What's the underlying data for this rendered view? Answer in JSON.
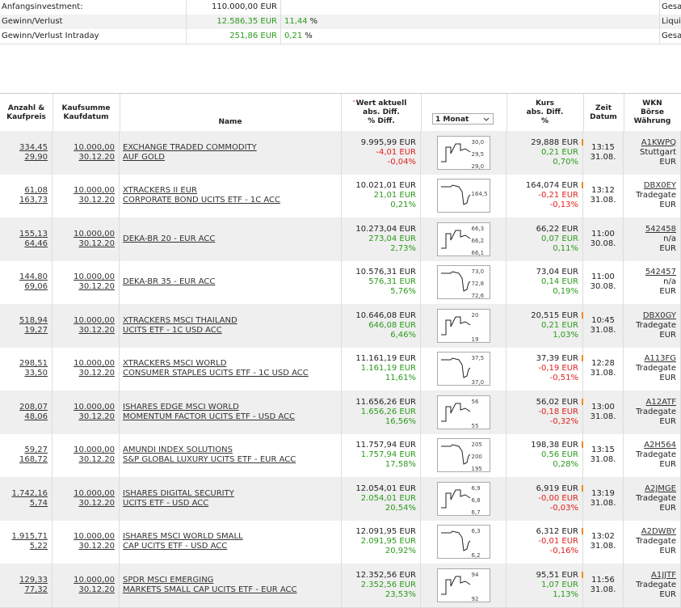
{
  "summary": [
    {
      "label": "Anfangsinvestment:",
      "value": "110.000,00 EUR",
      "pct": null,
      "unit": null,
      "right": "Gesa"
    },
    {
      "label": "Gewinn/Verlust",
      "value": "12.586,35 EUR",
      "pct": "11,44",
      "unit": "%",
      "right": "Liqui"
    },
    {
      "label": "Gewinn/Verlust Intraday",
      "value": "251,86 EUR",
      "pct": "0,21",
      "unit": "%",
      "right": "Gesa"
    }
  ],
  "header": {
    "qty": [
      "Anzahl &",
      "Kaufpreis"
    ],
    "sum": [
      "Kaufsumme",
      "Kaufdatum"
    ],
    "name": [
      "Name"
    ],
    "wert": [
      "Wert aktuell",
      "abs. Diff.",
      "% Diff."
    ],
    "period": "1 Monat",
    "kurs": [
      "Kurs",
      "abs. Diff.",
      "%"
    ],
    "zeit": [
      "Zeit",
      "Datum"
    ],
    "wkn": [
      "WKN",
      "Börse",
      "Währung"
    ]
  },
  "rows": [
    {
      "qty": "334,45",
      "price": "29,90",
      "sum": "10.000,00",
      "date": "30.12.20",
      "name": [
        "EXCHANGE TRADED COMMODITY",
        "AUF GOLD"
      ],
      "wert": [
        "9.995,99 EUR",
        "-4,01 EUR",
        "-0,04%"
      ],
      "spark": [
        "30,0",
        "29,5",
        "29,0"
      ],
      "kurs": [
        "29,888 EUR",
        "0,21 EUR",
        "0,70%"
      ],
      "flag": true,
      "zeit": [
        "13:15",
        "31.08."
      ],
      "wkn": [
        "A1KWPQ",
        "Stuttgart",
        "EUR"
      ]
    },
    {
      "qty": "61,08",
      "price": "163,73",
      "sum": "10.000,00",
      "date": "30.12.20",
      "name": [
        "XTRACKERS II EUR",
        "CORPORATE BOND UCITS ETF - 1C ACC"
      ],
      "wert": [
        "10.021,01 EUR",
        "21,01 EUR",
        "0,21%"
      ],
      "spark": [
        "164,5"
      ],
      "kurs": [
        "164,074 EUR",
        "-0,21 EUR",
        "-0,13%"
      ],
      "flag": true,
      "zeit": [
        "13:12",
        "31.08."
      ],
      "wkn": [
        "DBX0EY",
        "Tradegate",
        "EUR"
      ]
    },
    {
      "qty": "155,13",
      "price": "64,46",
      "sum": "10.000,00",
      "date": "30.12.20",
      "name": [
        "DEKA-BR 20 - EUR ACC"
      ],
      "wert": [
        "10.273,04 EUR",
        "273,04 EUR",
        "2,73%"
      ],
      "spark": [
        "66,3",
        "66,2",
        "66,1"
      ],
      "kurs": [
        "66,22 EUR",
        "0,07 EUR",
        "0,11%"
      ],
      "flag": false,
      "zeit": [
        "11:00",
        "30.08."
      ],
      "wkn": [
        "542458",
        "n/a",
        "EUR"
      ]
    },
    {
      "qty": "144,80",
      "price": "69,06",
      "sum": "10.000,00",
      "date": "30.12.20",
      "name": [
        "DEKA-BR 35 - EUR ACC"
      ],
      "wert": [
        "10.576,31 EUR",
        "576,31 EUR",
        "5,76%"
      ],
      "spark": [
        "73,0",
        "72,8",
        "72,6"
      ],
      "kurs": [
        "73,04 EUR",
        "0,14 EUR",
        "0,19%"
      ],
      "flag": false,
      "zeit": [
        "11:00",
        "30.08."
      ],
      "wkn": [
        "542457",
        "n/a",
        "EUR"
      ]
    },
    {
      "qty": "518,94",
      "price": "19,27",
      "sum": "10.000,00",
      "date": "30.12.20",
      "name": [
        "XTRACKERS MSCI THAILAND",
        "UCITS ETF - 1C USD ACC"
      ],
      "wert": [
        "10.646,08 EUR",
        "646,08 EUR",
        "6,46%"
      ],
      "spark": [
        "20",
        "19"
      ],
      "kurs": [
        "20,515 EUR",
        "0,21 EUR",
        "1,03%"
      ],
      "flag": true,
      "zeit": [
        "10:45",
        "31.08."
      ],
      "wkn": [
        "DBX0GY",
        "Tradegate",
        "EUR"
      ]
    },
    {
      "qty": "298,51",
      "price": "33,50",
      "sum": "10.000,00",
      "date": "30.12.20",
      "name": [
        "XTRACKERS MSCI WORLD",
        "CONSUMER STAPLES UCITS ETF - 1C USD ACC"
      ],
      "wert": [
        "11.161,19 EUR",
        "1.161,19 EUR",
        "11,61%"
      ],
      "spark": [
        "37,5",
        "37,0"
      ],
      "kurs": [
        "37,39 EUR",
        "-0,19 EUR",
        "-0,51%"
      ],
      "flag": true,
      "zeit": [
        "12:28",
        "31.08."
      ],
      "wkn": [
        "A113FG",
        "Tradegate",
        "EUR"
      ]
    },
    {
      "qty": "208,07",
      "price": "48,06",
      "sum": "10.000,00",
      "date": "30.12.20",
      "name": [
        "ISHARES EDGE MSCI WORLD",
        "MOMENTUM FACTOR UCITS ETF - USD ACC"
      ],
      "wert": [
        "11.656,26 EUR",
        "1.656,26 EUR",
        "16,56%"
      ],
      "spark": [
        "56",
        "55"
      ],
      "kurs": [
        "56,02 EUR",
        "-0,18 EUR",
        "-0,32%"
      ],
      "flag": true,
      "zeit": [
        "13:00",
        "31.08."
      ],
      "wkn": [
        "A12ATF",
        "Tradegate",
        "EUR"
      ]
    },
    {
      "qty": "59,27",
      "price": "168,72",
      "sum": "10.000,00",
      "date": "30.12.20",
      "name": [
        "AMUNDI INDEX SOLUTIONS",
        "S&P GLOBAL LUXURY UCITS ETF - EUR ACC"
      ],
      "wert": [
        "11.757,94 EUR",
        "1.757,94 EUR",
        "17,58%"
      ],
      "spark": [
        "205",
        "200",
        "195"
      ],
      "kurs": [
        "198,38 EUR",
        "0,56 EUR",
        "0,28%"
      ],
      "flag": true,
      "zeit": [
        "13:15",
        "31.08."
      ],
      "wkn": [
        "A2H564",
        "Tradegate",
        "EUR"
      ]
    },
    {
      "qty": "1.742,16",
      "price": "5,74",
      "sum": "10.000,00",
      "date": "30.12.20",
      "name": [
        "ISHARES DIGITAL SECURITY",
        "UCITS ETF - USD ACC"
      ],
      "wert": [
        "12.054,01 EUR",
        "2.054,01 EUR",
        "20,54%"
      ],
      "spark": [
        "6,9",
        "6,8",
        "6,7"
      ],
      "kurs": [
        "6,919 EUR",
        "-0,00 EUR",
        "-0,03%"
      ],
      "flag": true,
      "zeit": [
        "13:19",
        "31.08."
      ],
      "wkn": [
        "A2JMGE",
        "Tradegate",
        "EUR"
      ]
    },
    {
      "qty": "1.915,71",
      "price": "5,22",
      "sum": "10.000,00",
      "date": "30.12.20",
      "name": [
        "ISHARES MSCI WORLD SMALL",
        "CAP UCITS ETF - USD ACC"
      ],
      "wert": [
        "12.091,95 EUR",
        "2.091,95 EUR",
        "20,92%"
      ],
      "spark": [
        "6,3",
        "6,2"
      ],
      "kurs": [
        "6,312 EUR",
        "-0,01 EUR",
        "-0,16%"
      ],
      "flag": true,
      "zeit": [
        "13:02",
        "31.08."
      ],
      "wkn": [
        "A2DWBY",
        "Tradegate",
        "EUR"
      ]
    },
    {
      "qty": "129,33",
      "price": "77,32",
      "sum": "10.000,00",
      "date": "30.12.20",
      "name": [
        "SPDR MSCI EMERGING",
        "MARKETS SMALL CAP UCITS ETF - EUR ACC"
      ],
      "wert": [
        "12.352,56 EUR",
        "2.352,56 EUR",
        "23,53%"
      ],
      "spark": [
        "94",
        "92"
      ],
      "kurs": [
        "95,51 EUR",
        "1,07 EUR",
        "1,13%"
      ],
      "flag": true,
      "zeit": [
        "11:56",
        "31.08."
      ],
      "wkn": [
        "A1JJTF",
        "Tradegate",
        "EUR"
      ]
    }
  ]
}
